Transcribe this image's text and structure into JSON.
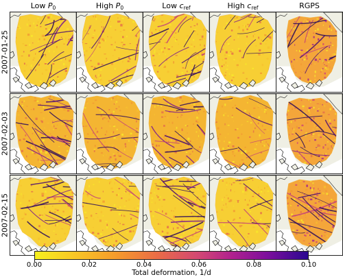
{
  "columns": [
    {
      "main": "Low ",
      "sub": "P",
      "subscript": "0"
    },
    {
      "main": "High ",
      "sub": "P",
      "subscript": "0"
    },
    {
      "main": "Low ",
      "sub": "c",
      "subscript": "ref"
    },
    {
      "main": "High ",
      "sub": "c",
      "subscript": "ref"
    },
    {
      "main": "RGPS",
      "sub": "",
      "subscript": ""
    }
  ],
  "rows": [
    "2007-01-25",
    "2007-02-03",
    "2007-02-15"
  ],
  "colorbar": {
    "ticks": [
      "0.00",
      "0.02",
      "0.04",
      "0.06",
      "0.08",
      "0.10"
    ],
    "range": [
      0.0,
      0.1
    ],
    "label": "Total deformation, 1/d",
    "colors": [
      "#f7f01e",
      "#f59a2c",
      "#d24774",
      "#7d109c",
      "#2a0890"
    ]
  },
  "colors": {
    "land": "#efefe4",
    "coast": "#1a1a1a",
    "ice_base": "#f6c33a"
  }
}
